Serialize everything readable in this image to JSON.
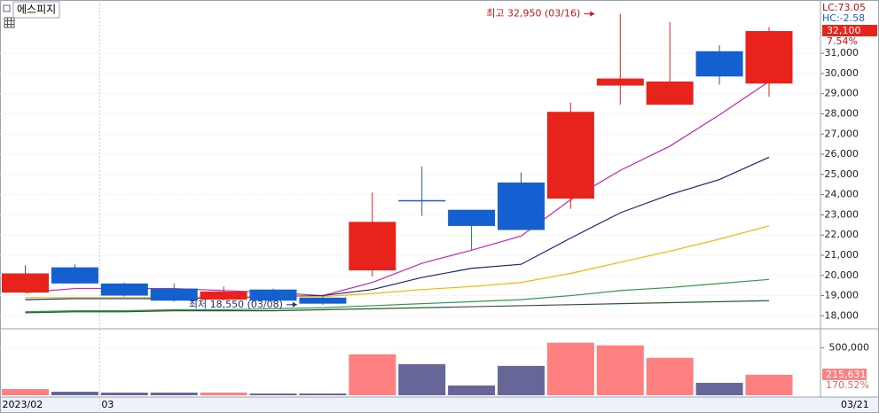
{
  "chart_data": [
    {
      "type": "candlestick",
      "title": "에스피지",
      "categories": [
        "2023/02",
        null,
        "03",
        null,
        null,
        null,
        null,
        null,
        null,
        null,
        null,
        null,
        null,
        null,
        null,
        "03/21"
      ],
      "open": [
        19150,
        20400,
        19600,
        19350,
        18800,
        19300,
        18900,
        20250,
        23700,
        23250,
        24600,
        23800,
        29400,
        28450,
        31100,
        29500
      ],
      "close": [
        20100,
        19600,
        19000,
        18750,
        19200,
        18750,
        18600,
        22650,
        23700,
        22450,
        22250,
        28100,
        29750,
        29600,
        29850,
        32100
      ],
      "high": [
        20500,
        20550,
        19650,
        19600,
        19450,
        19350,
        19050,
        24100,
        25400,
        23250,
        25100,
        28550,
        32950,
        32550,
        31400,
        32300
      ],
      "low": [
        19150,
        19600,
        18950,
        18700,
        18750,
        18700,
        18550,
        19950,
        22950,
        21250,
        22250,
        23300,
        28450,
        28450,
        29450,
        28850
      ],
      "up_color": "#e8231b",
      "down_color": "#1560d0",
      "lines": [
        {
          "color": "#d020c0",
          "values": [
            19150,
            19350,
            19350,
            19350,
            19250,
            19150,
            19000,
            19650,
            20600,
            21250,
            21950,
            23750,
            25200,
            26400,
            27950,
            29600
          ]
        },
        {
          "color": "#1a237e",
          "values": [
            18800,
            18850,
            18850,
            18850,
            18900,
            18950,
            19000,
            19300,
            19900,
            20350,
            20550,
            21850,
            23100,
            24000,
            24750,
            25850
          ]
        },
        {
          "color": "#f5b800",
          "values": [
            18900,
            18900,
            18900,
            18900,
            18950,
            18950,
            18950,
            19100,
            19300,
            19450,
            19650,
            20100,
            20650,
            21200,
            21800,
            22450
          ]
        },
        {
          "color": "#2e9e4a",
          "values": [
            18200,
            18250,
            18250,
            18300,
            18300,
            18350,
            18400,
            18500,
            18600,
            18700,
            18800,
            19000,
            19250,
            19400,
            19600,
            19800
          ]
        },
        {
          "color": "#2d5a2d",
          "values": [
            18150,
            18200,
            18200,
            18250,
            18250,
            18250,
            18300,
            18350,
            18400,
            18450,
            18500,
            18550,
            18600,
            18650,
            18700,
            18750
          ]
        }
      ],
      "ylim": [
        17400,
        33550
      ],
      "yticks": [
        {
          "value": 18000,
          "label": "18,000"
        },
        {
          "value": 19000,
          "label": "19,000"
        },
        {
          "value": 20000,
          "label": "20,000"
        },
        {
          "value": 21000,
          "label": "21,000"
        },
        {
          "value": 22000,
          "label": "22,000"
        },
        {
          "value": 23000,
          "label": "23,000"
        },
        {
          "value": 24000,
          "label": "24,000"
        },
        {
          "value": 25000,
          "label": "25,000"
        },
        {
          "value": 26000,
          "label": "26,000"
        },
        {
          "value": 27000,
          "label": "27,000"
        },
        {
          "value": 28000,
          "label": "28,000"
        },
        {
          "value": 29000,
          "label": "29,000"
        },
        {
          "value": 30000,
          "label": "30,000"
        },
        {
          "value": 31000,
          "label": "31,000"
        }
      ],
      "grid": true,
      "high_annotation": "최고 32,950 (03/16)",
      "low_annotation": "최저 18,550 (03/08)",
      "lc_label": "LC:73.05",
      "hc_label": "HC:-2.58",
      "last_close_label": "32,100",
      "change_label": "7.54%"
    },
    {
      "type": "bar",
      "values": [
        65600,
        37500,
        28100,
        28100,
        28100,
        18750,
        18750,
        431250,
        328000,
        103000,
        309000,
        553000,
        525000,
        394000,
        131000,
        215631
      ],
      "value_labels": [
        null,
        null,
        null,
        null,
        null,
        null,
        null,
        null,
        null,
        null,
        null,
        null,
        null,
        null,
        null,
        "215,631"
      ],
      "colors": [
        "#ff8080",
        "#666699",
        "#666699",
        "#666699",
        "#ff8080",
        "#666699",
        "#666699",
        "#ff8080",
        "#666699",
        "#666699",
        "#666699",
        "#ff8080",
        "#ff8080",
        "#ff8080",
        "#666699",
        "#ff8080"
      ],
      "ylim": [
        0,
        690000
      ],
      "yticks": [
        {
          "value": 500000,
          "label": "500,000"
        }
      ],
      "change_label": "170.52%"
    }
  ]
}
